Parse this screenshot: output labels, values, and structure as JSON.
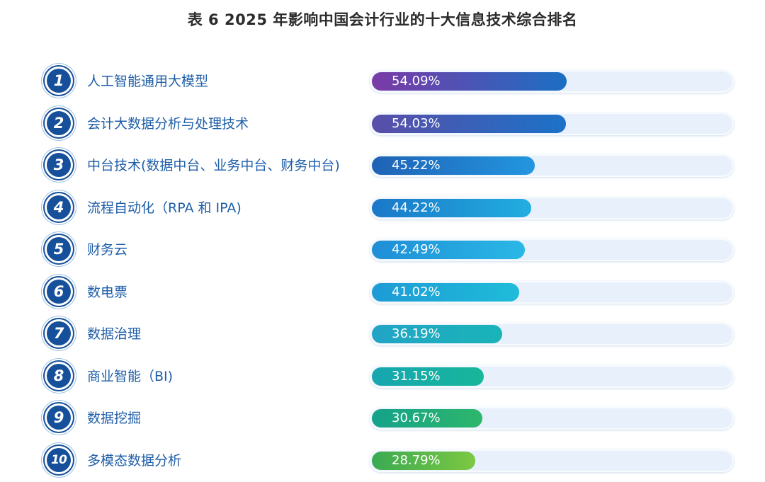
{
  "title": "表 6  2025 年影响中国会计行业的十大信息技术综合排名",
  "chart_data": {
    "type": "bar",
    "orientation": "horizontal",
    "title": "表 6  2025 年影响中国会计行业的十大信息技术综合排名",
    "xlim": [
      0,
      100
    ],
    "rows": [
      {
        "rank": "1",
        "label": "人工智能通用大模型",
        "value": 54.09,
        "value_label": "54.09%",
        "color_start": "#7b3aa6",
        "color_end": "#1b6fc4"
      },
      {
        "rank": "2",
        "label": "会计大数据分析与处理技术",
        "value": 54.03,
        "value_label": "54.03%",
        "color_start": "#5a4ea8",
        "color_end": "#1b72c8"
      },
      {
        "rank": "3",
        "label": "中台技术(数据中台、业务中台、财务中台)",
        "value": 45.22,
        "value_label": "45.22%",
        "color_start": "#1f62b5",
        "color_end": "#2396e0"
      },
      {
        "rank": "4",
        "label": "流程自动化（RPA 和 IPA)",
        "value": 44.22,
        "value_label": "44.22%",
        "color_start": "#1a78c8",
        "color_end": "#22aee0"
      },
      {
        "rank": "5",
        "label": "财务云",
        "value": 42.49,
        "value_label": "42.49%",
        "color_start": "#1f8ed6",
        "color_end": "#2ab8e6"
      },
      {
        "rank": "6",
        "label": "数电票",
        "value": 41.02,
        "value_label": "41.02%",
        "color_start": "#1d9bd6",
        "color_end": "#1fbcd9"
      },
      {
        "rank": "7",
        "label": "数据治理",
        "value": 36.19,
        "value_label": "36.19%",
        "color_start": "#22a4c6",
        "color_end": "#19b4b8"
      },
      {
        "rank": "8",
        "label": "商业智能（BI)",
        "value": 31.15,
        "value_label": "31.15%",
        "color_start": "#16a6b0",
        "color_end": "#18b69a"
      },
      {
        "rank": "9",
        "label": "数据挖掘",
        "value": 30.67,
        "value_label": "30.67%",
        "color_start": "#14a28a",
        "color_end": "#2eb66a"
      },
      {
        "rank": "10",
        "label": "多模态数据分析",
        "value": 28.79,
        "value_label": "28.79%",
        "color_start": "#3aaa52",
        "color_end": "#7cc842"
      }
    ]
  }
}
